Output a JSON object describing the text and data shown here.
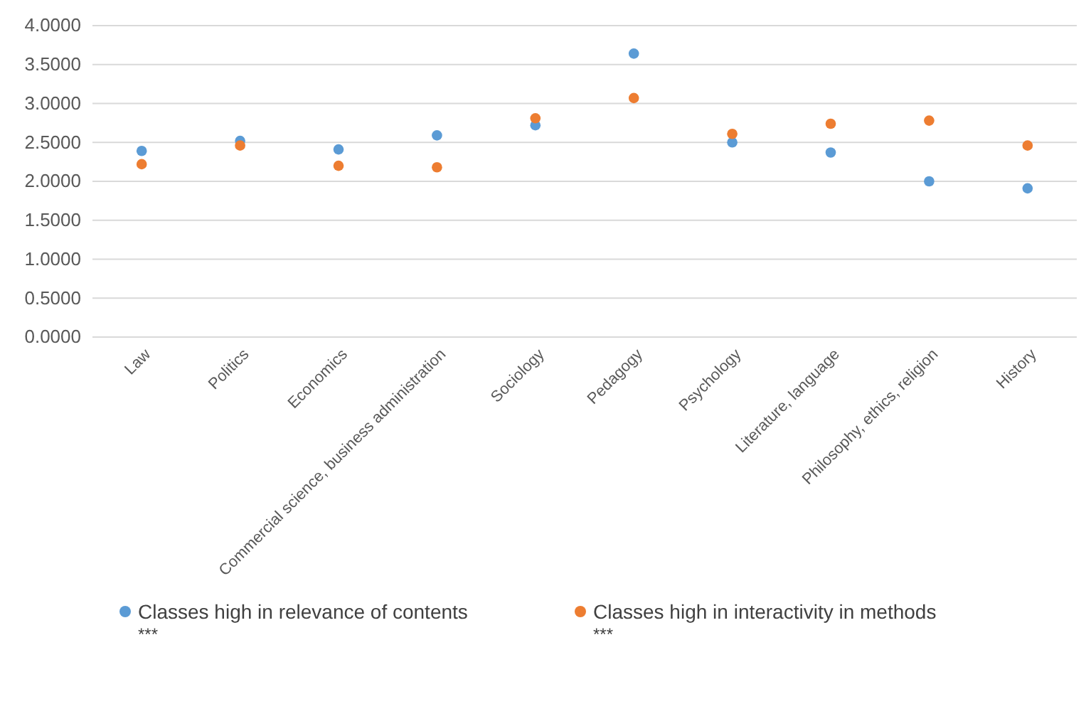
{
  "chart_data": {
    "type": "scatter",
    "categories": [
      "Law",
      "Politics",
      "Economics",
      "Commercial science, business administration",
      "Sociology",
      "Pedagogy",
      "Psychology",
      "Literature, language",
      "Philosophy, ethics, religion",
      "History"
    ],
    "series": [
      {
        "name": "Classes high in relevance of contents",
        "color": "#5b9bd5",
        "values": [
          2.39,
          2.52,
          2.41,
          2.59,
          2.72,
          3.64,
          2.5,
          2.37,
          2.0,
          1.91
        ]
      },
      {
        "name": "Classes high in interactivity in methods",
        "color": "#ed7d31",
        "values": [
          2.22,
          2.46,
          2.2,
          2.18,
          2.81,
          3.07,
          2.61,
          2.74,
          2.78,
          2.46
        ]
      }
    ],
    "ylim": [
      0,
      4
    ],
    "yticks": [
      {
        "value": 0,
        "label": "0.0000"
      },
      {
        "value": 0.5,
        "label": "0.5000"
      },
      {
        "value": 1,
        "label": "1.0000"
      },
      {
        "value": 1.5,
        "label": "1.5000"
      },
      {
        "value": 2,
        "label": "2.0000"
      },
      {
        "value": 2.5,
        "label": "2.5000"
      },
      {
        "value": 3,
        "label": "3.0000"
      },
      {
        "value": 3.5,
        "label": "3.5000"
      },
      {
        "value": 4,
        "label": "4.0000"
      }
    ],
    "grid": "y",
    "legend": "bottom",
    "marker": "circle",
    "annotations": [
      "***",
      "***"
    ]
  }
}
